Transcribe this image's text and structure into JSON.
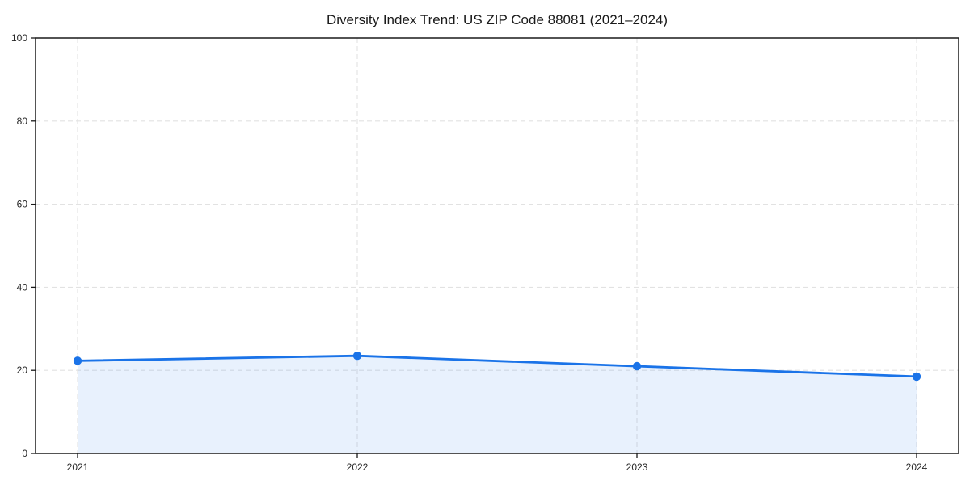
{
  "chart_data": {
    "type": "line",
    "title": "Diversity Index Trend: US ZIP Code 88081 (2021–2024)",
    "x": [
      "2021",
      "2022",
      "2023",
      "2024"
    ],
    "series": [
      {
        "name": "Diversity Index",
        "values": [
          22.3,
          23.5,
          21.0,
          18.5
        ]
      }
    ],
    "xlabel": "",
    "ylabel": "",
    "ylim": [
      0,
      100
    ],
    "yticks": [
      0,
      20,
      40,
      60,
      80,
      100
    ],
    "grid": "dashed",
    "legend": "none",
    "area_fill": true,
    "marker": "circle",
    "colors": {
      "line": "#1a73e8",
      "area": "rgba(26,115,232,0.10)",
      "grid": "#e2e2e2",
      "spine": "#1a1a1a",
      "text": "#1a1a1a"
    }
  }
}
